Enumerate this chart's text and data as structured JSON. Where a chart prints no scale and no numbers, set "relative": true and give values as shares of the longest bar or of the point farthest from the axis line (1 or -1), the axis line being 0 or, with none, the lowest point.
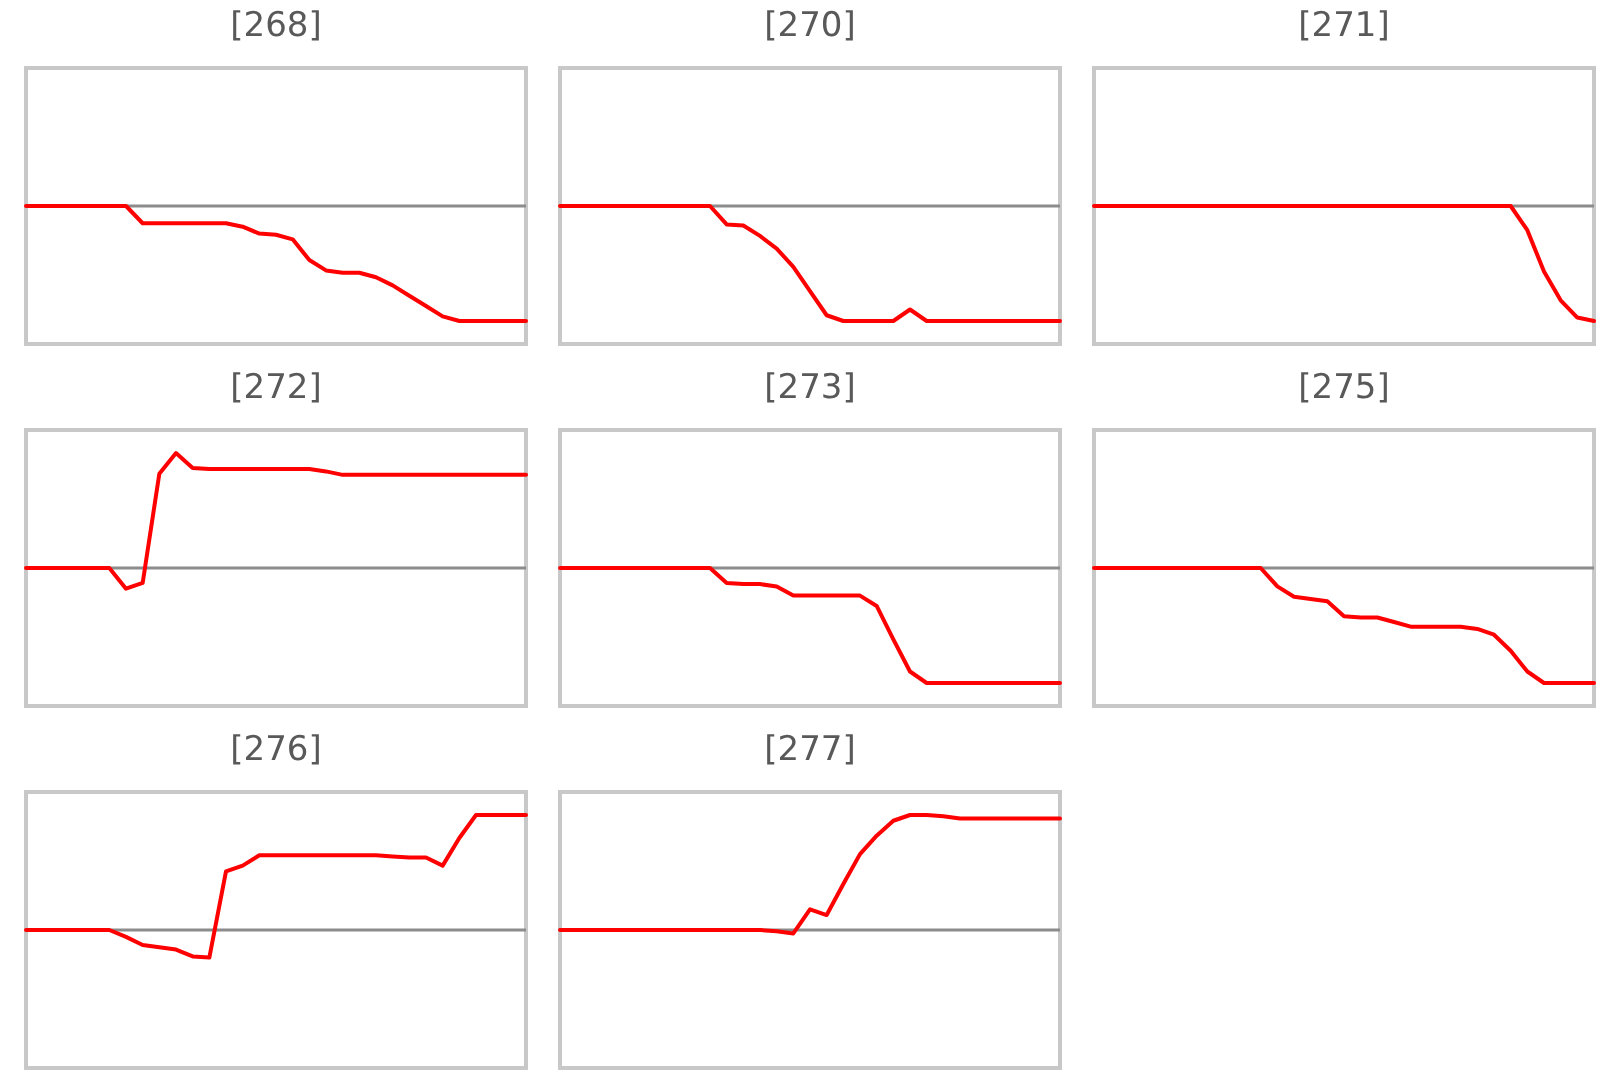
{
  "chart_data": [
    {
      "type": "line",
      "title": "[268]",
      "relative": true,
      "color": "#ff0000",
      "categories": [
        null,
        null,
        null,
        null,
        null,
        null,
        null,
        null,
        null,
        null,
        null,
        null,
        null,
        null,
        null,
        null,
        null,
        null,
        null,
        null,
        null,
        null,
        null,
        null,
        null,
        null,
        null,
        null,
        null,
        null,
        null
      ],
      "values": [
        0,
        0,
        0,
        0,
        0,
        0,
        0,
        -0.15,
        -0.15,
        -0.15,
        -0.15,
        -0.15,
        -0.15,
        -0.18,
        -0.24,
        -0.25,
        -0.29,
        -0.47,
        -0.56,
        -0.58,
        -0.58,
        -0.62,
        -0.69,
        -0.78,
        -0.87,
        -0.96,
        -1,
        -1,
        -1,
        -1,
        -1
      ]
    },
    {
      "type": "line",
      "title": "[270]",
      "relative": true,
      "color": "#ff0000",
      "categories": [
        null,
        null,
        null,
        null,
        null,
        null,
        null,
        null,
        null,
        null,
        null,
        null,
        null,
        null,
        null,
        null,
        null,
        null,
        null,
        null,
        null,
        null,
        null,
        null,
        null,
        null,
        null,
        null,
        null,
        null,
        null
      ],
      "values": [
        0,
        0,
        0,
        0,
        0,
        0,
        0,
        0,
        0,
        0,
        -0.16,
        -0.17,
        -0.26,
        -0.37,
        -0.53,
        -0.74,
        -0.95,
        -1,
        -1,
        -1,
        -1,
        -0.9,
        -1,
        -1,
        -1,
        -1,
        -1,
        -1,
        -1,
        -1,
        -1
      ]
    },
    {
      "type": "line",
      "title": "[271]",
      "relative": true,
      "color": "#ff0000",
      "categories": [
        null,
        null,
        null,
        null,
        null,
        null,
        null,
        null,
        null,
        null,
        null,
        null,
        null,
        null,
        null,
        null,
        null,
        null,
        null,
        null,
        null,
        null,
        null,
        null,
        null,
        null,
        null,
        null,
        null,
        null,
        null
      ],
      "values": [
        0,
        0,
        0,
        0,
        0,
        0,
        0,
        0,
        0,
        0,
        0,
        0,
        0,
        0,
        0,
        0,
        0,
        0,
        0,
        0,
        0,
        0,
        0,
        0,
        0,
        0,
        -0.21,
        -0.57,
        -0.82,
        -0.97,
        -1
      ]
    },
    {
      "type": "line",
      "title": "[272]",
      "relative": true,
      "color": "#ff0000",
      "categories": [
        null,
        null,
        null,
        null,
        null,
        null,
        null,
        null,
        null,
        null,
        null,
        null,
        null,
        null,
        null,
        null,
        null,
        null,
        null,
        null,
        null,
        null,
        null,
        null,
        null,
        null,
        null,
        null,
        null,
        null,
        null
      ],
      "values": [
        0,
        0,
        0,
        0,
        0,
        0,
        -0.18,
        -0.13,
        0.82,
        1,
        0.87,
        0.86,
        0.86,
        0.86,
        0.86,
        0.86,
        0.86,
        0.86,
        0.84,
        0.81,
        0.81,
        0.81,
        0.81,
        0.81,
        0.81,
        0.81,
        0.81,
        0.81,
        0.81,
        0.81,
        0.81
      ]
    },
    {
      "type": "line",
      "title": "[273]",
      "relative": true,
      "color": "#ff0000",
      "categories": [
        null,
        null,
        null,
        null,
        null,
        null,
        null,
        null,
        null,
        null,
        null,
        null,
        null,
        null,
        null,
        null,
        null,
        null,
        null,
        null,
        null,
        null,
        null,
        null,
        null,
        null,
        null,
        null,
        null,
        null,
        null
      ],
      "values": [
        0,
        0,
        0,
        0,
        0,
        0,
        0,
        0,
        0,
        0,
        -0.13,
        -0.14,
        -0.14,
        -0.16,
        -0.24,
        -0.24,
        -0.24,
        -0.24,
        -0.24,
        -0.33,
        -0.62,
        -0.9,
        -1,
        -1,
        -1,
        -1,
        -1,
        -1,
        -1,
        -1,
        -1
      ]
    },
    {
      "type": "line",
      "title": "[275]",
      "relative": true,
      "color": "#ff0000",
      "categories": [
        null,
        null,
        null,
        null,
        null,
        null,
        null,
        null,
        null,
        null,
        null,
        null,
        null,
        null,
        null,
        null,
        null,
        null,
        null,
        null,
        null,
        null,
        null,
        null,
        null,
        null,
        null,
        null,
        null,
        null,
        null
      ],
      "values": [
        0,
        0,
        0,
        0,
        0,
        0,
        0,
        0,
        0,
        0,
        0,
        -0.16,
        -0.25,
        -0.27,
        -0.29,
        -0.42,
        -0.43,
        -0.43,
        -0.47,
        -0.51,
        -0.51,
        -0.51,
        -0.51,
        -0.53,
        -0.58,
        -0.72,
        -0.9,
        -1,
        -1,
        -1,
        -1
      ]
    },
    {
      "type": "line",
      "title": "[276]",
      "relative": true,
      "color": "#ff0000",
      "categories": [
        null,
        null,
        null,
        null,
        null,
        null,
        null,
        null,
        null,
        null,
        null,
        null,
        null,
        null,
        null,
        null,
        null,
        null,
        null,
        null,
        null,
        null,
        null,
        null,
        null,
        null,
        null,
        null,
        null,
        null,
        null
      ],
      "values": [
        0,
        0,
        0,
        0,
        0,
        0,
        -0.06,
        -0.13,
        -0.15,
        -0.17,
        -0.23,
        -0.24,
        0.51,
        0.56,
        0.65,
        0.65,
        0.65,
        0.65,
        0.65,
        0.65,
        0.65,
        0.65,
        0.64,
        0.63,
        0.63,
        0.56,
        0.8,
        1,
        1,
        1,
        1
      ]
    },
    {
      "type": "line",
      "title": "[277]",
      "relative": true,
      "color": "#ff0000",
      "categories": [
        null,
        null,
        null,
        null,
        null,
        null,
        null,
        null,
        null,
        null,
        null,
        null,
        null,
        null,
        null,
        null,
        null,
        null,
        null,
        null,
        null,
        null,
        null,
        null,
        null,
        null,
        null,
        null,
        null,
        null,
        null
      ],
      "values": [
        0,
        0,
        0,
        0,
        0,
        0,
        0,
        0,
        0,
        0,
        0,
        0,
        0,
        -0.01,
        -0.03,
        0.18,
        0.13,
        0.4,
        0.66,
        0.82,
        0.95,
        1,
        1,
        0.99,
        0.97,
        0.97,
        0.97,
        0.97,
        0.97,
        0.97,
        0.97
      ]
    }
  ]
}
